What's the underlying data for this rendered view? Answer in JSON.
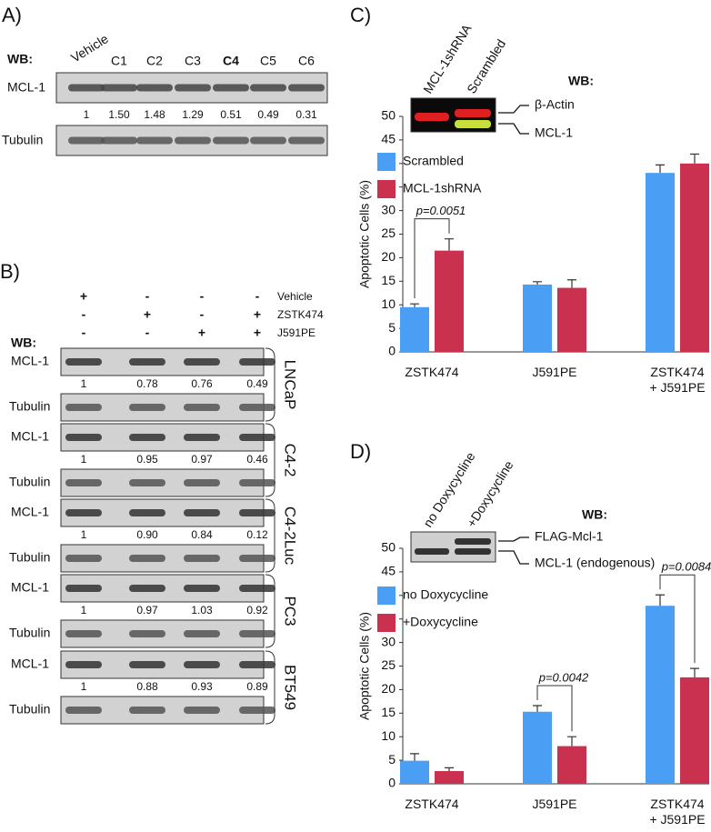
{
  "panel_a": {
    "label": "A)",
    "wb": "WB:",
    "lanes": [
      "Vehicle",
      "C1",
      "C2",
      "C3",
      "C4",
      "C5",
      "C6"
    ],
    "rows": [
      "MCL-1",
      "Tubulin"
    ],
    "ratios": [
      "1",
      "1.50",
      "1.48",
      "1.29",
      "0.51",
      "0.49",
      "0.31"
    ]
  },
  "panel_b": {
    "label": "B)",
    "wb": "WB:",
    "treatments": [
      {
        "name": "Vehicle",
        "signs": [
          "+",
          "-",
          "-",
          "-"
        ]
      },
      {
        "name": "ZSTK474",
        "signs": [
          "-",
          "+",
          "-",
          "+"
        ]
      },
      {
        "name": "J591PE",
        "signs": [
          "-",
          "-",
          "+",
          "+"
        ]
      }
    ],
    "cell_lines": [
      {
        "name": "LNCaP",
        "rows": [
          "MCL-1",
          "Tubulin"
        ],
        "ratios": [
          "1",
          "0.78",
          "0.76",
          "0.49"
        ]
      },
      {
        "name": "C4-2",
        "rows": [
          "MCL-1",
          "Tubulin"
        ],
        "ratios": [
          "1",
          "0.95",
          "0.97",
          "0.46"
        ]
      },
      {
        "name": "C4-2Luc",
        "rows": [
          "MCL-1",
          "Tubulin"
        ],
        "ratios": [
          "1",
          "0.90",
          "0.84",
          "0.12"
        ]
      },
      {
        "name": "PC3",
        "rows": [
          "MCL-1",
          "Tubulin"
        ],
        "ratios": [
          "1",
          "0.97",
          "1.03",
          "0.92"
        ]
      },
      {
        "name": "BT549",
        "rows": [
          "MCL-1",
          "Tubulin"
        ],
        "ratios": [
          "1",
          "0.88",
          "0.93",
          "0.89"
        ]
      }
    ]
  },
  "chart_data": [
    {
      "type": "bar",
      "panel": "C)",
      "y_label": "Apoptotic Cells (%)",
      "categories": [
        "ZSTK474",
        "J591PE",
        "ZSTK474\n+ J591PE"
      ],
      "series": [
        {
          "name": "Scrambled",
          "color": "#4a9ff5",
          "values": [
            9.5,
            14.3,
            38
          ],
          "errors": [
            0.7,
            0.6,
            1.7
          ]
        },
        {
          "name": "MCL-1shRNA",
          "color": "#c9314f",
          "values": [
            21.5,
            13.6,
            40
          ],
          "errors": [
            2.5,
            1.7,
            2
          ]
        }
      ],
      "ylim": [
        0,
        50
      ],
      "yticks": [
        0,
        5,
        10,
        15,
        20,
        25,
        30,
        35,
        40,
        45,
        50
      ],
      "legend": "upper left",
      "annotations": [
        "p=0.0051"
      ],
      "inset": {
        "lanes": [
          "MCL-1shRNA",
          "Scrambled"
        ],
        "wb": "WB:",
        "bands": [
          "β-Actin",
          "MCL-1"
        ]
      }
    },
    {
      "type": "bar",
      "panel": "D)",
      "y_label": "Apoptotic Cells (%)",
      "categories": [
        "ZSTK474",
        "J591PE",
        "ZSTK474\n+ J591PE"
      ],
      "series": [
        {
          "name": "no Doxycycline",
          "color": "#4a9ff5",
          "values": [
            4.9,
            15.3,
            37.8
          ],
          "errors": [
            1.5,
            1.3,
            2.3
          ]
        },
        {
          "name": "+Doxycycline",
          "color": "#c9314f",
          "values": [
            2.7,
            8.0,
            22.6
          ],
          "errors": [
            0.7,
            2,
            1.9
          ]
        }
      ],
      "ylim": [
        0,
        50
      ],
      "yticks": [
        0,
        5,
        10,
        15,
        20,
        25,
        30,
        35,
        40,
        45,
        50
      ],
      "legend": "upper left",
      "annotations": [
        "p=0.0042",
        "p=0.0084"
      ],
      "inset": {
        "lanes": [
          "no Doxycycline",
          "+Doxycycline"
        ],
        "wb": "WB:",
        "bands": [
          "FLAG-Mcl-1",
          "MCL-1 (endogenous)"
        ]
      }
    }
  ]
}
